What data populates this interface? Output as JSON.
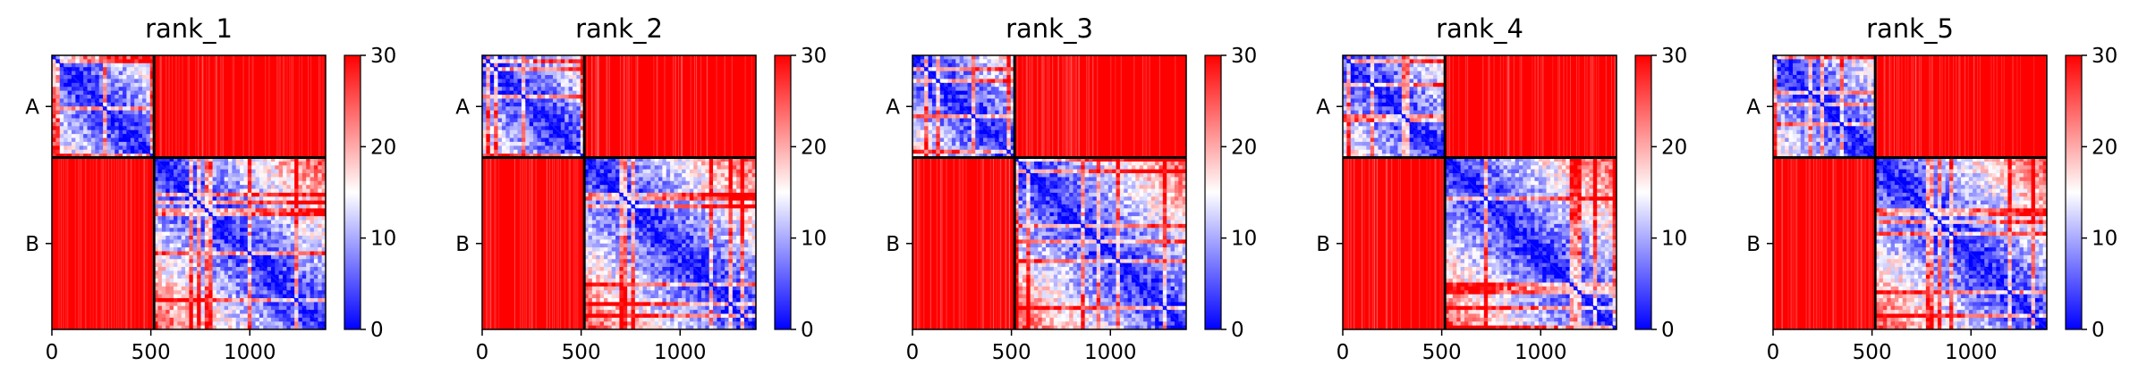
{
  "chart_data": {
    "type": "heatmap",
    "colormap": [
      "#0000ff",
      "#ffffff",
      "#ff0000"
    ],
    "color_range": [
      0,
      30
    ],
    "colorbar_ticks": [
      0,
      10,
      20,
      30
    ],
    "x_ticks": [
      0,
      500,
      1000
    ],
    "xlim": [
      0,
      1383
    ],
    "boundary": 516,
    "chains": [
      {
        "label": "A",
        "start": 0,
        "end": 516
      },
      {
        "label": "B",
        "start": 516,
        "end": 1383
      }
    ],
    "panels": [
      {
        "title": "rank_1",
        "seed": 11
      },
      {
        "title": "rank_2",
        "seed": 23
      },
      {
        "title": "rank_3",
        "seed": 37
      },
      {
        "title": "rank_4",
        "seed": 41
      },
      {
        "title": "rank_5",
        "seed": 53
      }
    ],
    "pattern": {
      "intra_chain_low": "diagonal",
      "inter_chain": 30
    }
  }
}
